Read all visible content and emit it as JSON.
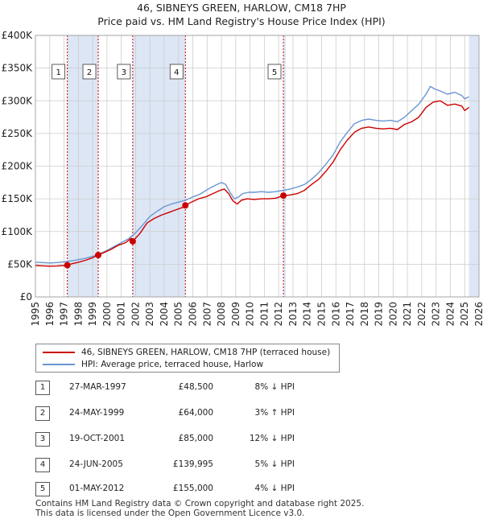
{
  "title_line1": "46, SIBNEYS GREEN, HARLOW, CM18 7HP",
  "title_line2": "Price paid vs. HM Land Registry's House Price Index (HPI)",
  "colors": {
    "property": "#cc0000",
    "hpi": "#6a96d0",
    "shade": "#dde6f5",
    "grid": "#cccccc"
  },
  "chart_data": {
    "type": "line",
    "xlim": [
      1995,
      2026
    ],
    "ylim": [
      0,
      400000
    ],
    "x_ticks": [
      "1995",
      "1996",
      "1997",
      "1998",
      "1999",
      "2000",
      "2001",
      "2002",
      "2003",
      "2004",
      "2005",
      "2006",
      "2007",
      "2008",
      "2009",
      "2010",
      "2011",
      "2012",
      "2013",
      "2014",
      "2015",
      "2016",
      "2017",
      "2018",
      "2019",
      "2020",
      "2021",
      "2022",
      "2023",
      "2024",
      "2025",
      "2026"
    ],
    "y_ticks": [
      {
        "value": 0,
        "label": "£0"
      },
      {
        "value": 50000,
        "label": "£50K"
      },
      {
        "value": 100000,
        "label": "£100K"
      },
      {
        "value": 150000,
        "label": "£150K"
      },
      {
        "value": 200000,
        "label": "£200K"
      },
      {
        "value": 250000,
        "label": "£250K"
      },
      {
        "value": 300000,
        "label": "£300K"
      },
      {
        "value": 350000,
        "label": "£350K"
      },
      {
        "value": 400000,
        "label": "£400K"
      }
    ],
    "shaded_ranges": [
      [
        1997.23,
        1999.39
      ],
      [
        2001.8,
        2005.48
      ],
      [
        2012.33,
        2012.5
      ],
      [
        2025.3,
        2026
      ]
    ],
    "series": [
      {
        "name": "46, SIBNEYS GREEN, HARLOW, CM18 7HP (terraced house)",
        "x": [
          1995.0,
          1995.5,
          1996.0,
          1996.5,
          1997.0,
          1997.23,
          1997.6,
          1998.0,
          1998.5,
          1999.0,
          1999.39,
          1999.8,
          2000.3,
          2000.8,
          2001.3,
          2001.7,
          2001.8,
          2002.3,
          2002.8,
          2003.3,
          2003.8,
          2004.3,
          2004.8,
          2005.3,
          2005.48,
          2005.9,
          2006.4,
          2006.9,
          2007.4,
          2007.9,
          2008.2,
          2008.5,
          2008.8,
          2009.1,
          2009.4,
          2009.8,
          2010.3,
          2010.8,
          2011.3,
          2011.8,
          2012.33,
          2012.8,
          2013.3,
          2013.8,
          2014.3,
          2014.8,
          2015.3,
          2015.8,
          2016.3,
          2016.8,
          2017.3,
          2017.8,
          2018.3,
          2018.8,
          2019.3,
          2019.8,
          2020.3,
          2020.8,
          2021.3,
          2021.8,
          2022.3,
          2022.8,
          2023.3,
          2023.8,
          2024.3,
          2024.8,
          2025.0,
          2025.3
        ],
        "y": [
          48000,
          47500,
          47000,
          47200,
          48000,
          48500,
          51000,
          53000,
          56000,
          60000,
          64000,
          68000,
          73000,
          79000,
          83000,
          90000,
          85000,
          97000,
          113000,
          120000,
          125000,
          129000,
          133000,
          137000,
          139995,
          145000,
          150000,
          153000,
          158000,
          163000,
          165000,
          158000,
          147000,
          142000,
          148000,
          150000,
          149000,
          150000,
          150000,
          151000,
          155000,
          156000,
          158000,
          163000,
          172000,
          180000,
          192000,
          206000,
          225000,
          240000,
          252000,
          258000,
          260000,
          258000,
          257000,
          258000,
          256000,
          264000,
          268000,
          275000,
          290000,
          298000,
          300000,
          293000,
          295000,
          292000,
          285000,
          290000
        ]
      },
      {
        "name": "HPI: Average price, terraced house, Harlow",
        "x": [
          1995.0,
          1995.5,
          1996.0,
          1996.5,
          1997.0,
          1997.5,
          1998.0,
          1998.5,
          1999.0,
          1999.5,
          2000.0,
          2000.5,
          2001.0,
          2001.5,
          2002.0,
          2002.5,
          2003.0,
          2003.5,
          2004.0,
          2004.5,
          2005.0,
          2005.5,
          2006.0,
          2006.5,
          2007.0,
          2007.5,
          2008.0,
          2008.3,
          2008.6,
          2008.9,
          2009.2,
          2009.5,
          2009.9,
          2010.3,
          2010.8,
          2011.3,
          2011.8,
          2012.3,
          2012.8,
          2013.3,
          2013.8,
          2014.3,
          2014.8,
          2015.3,
          2015.8,
          2016.3,
          2016.8,
          2017.3,
          2017.8,
          2018.3,
          2018.8,
          2019.3,
          2019.8,
          2020.3,
          2020.8,
          2021.3,
          2021.8,
          2022.3,
          2022.6,
          2022.9,
          2023.3,
          2023.8,
          2024.3,
          2024.8,
          2025.0,
          2025.3
        ],
        "y": [
          53000,
          52500,
          52000,
          52500,
          53500,
          55000,
          57000,
          59000,
          62000,
          66000,
          71000,
          77000,
          83000,
          89000,
          98000,
          110000,
          123000,
          131000,
          138000,
          142000,
          145000,
          148000,
          153000,
          157000,
          164000,
          170000,
          175000,
          172000,
          160000,
          150000,
          153000,
          158000,
          160000,
          160000,
          161000,
          160000,
          161000,
          163000,
          165000,
          168000,
          172000,
          180000,
          190000,
          203000,
          217000,
          237000,
          252000,
          265000,
          270000,
          272000,
          270000,
          269000,
          270000,
          268000,
          275000,
          285000,
          295000,
          310000,
          322000,
          318000,
          315000,
          310000,
          313000,
          308000,
          303000,
          306000
        ]
      }
    ],
    "sales": [
      {
        "num": "1",
        "x": 1997.23,
        "y": 48500
      },
      {
        "num": "2",
        "x": 1999.39,
        "y": 64000
      },
      {
        "num": "3",
        "x": 2001.8,
        "y": 85000
      },
      {
        "num": "4",
        "x": 2005.48,
        "y": 139995
      },
      {
        "num": "5",
        "x": 2012.33,
        "y": 155000
      }
    ]
  },
  "legend": {
    "property_label": "46, SIBNEYS GREEN, HARLOW, CM18 7HP (terraced house)",
    "hpi_label": "HPI: Average price, terraced house, Harlow"
  },
  "sales_table": [
    {
      "num": "1",
      "date": "27-MAR-1997",
      "price": "£48,500",
      "hpi": "8% ↓ HPI"
    },
    {
      "num": "2",
      "date": "24-MAY-1999",
      "price": "£64,000",
      "hpi": "3% ↑ HPI"
    },
    {
      "num": "3",
      "date": "19-OCT-2001",
      "price": "£85,000",
      "hpi": "12% ↓ HPI"
    },
    {
      "num": "4",
      "date": "24-JUN-2005",
      "price": "£139,995",
      "hpi": "5% ↓ HPI"
    },
    {
      "num": "5",
      "date": "01-MAY-2012",
      "price": "£155,000",
      "hpi": "4% ↓ HPI"
    }
  ],
  "footer": {
    "line1": "Contains HM Land Registry data © Crown copyright and database right 2025.",
    "line2": "This data is licensed under the Open Government Licence v3.0."
  }
}
